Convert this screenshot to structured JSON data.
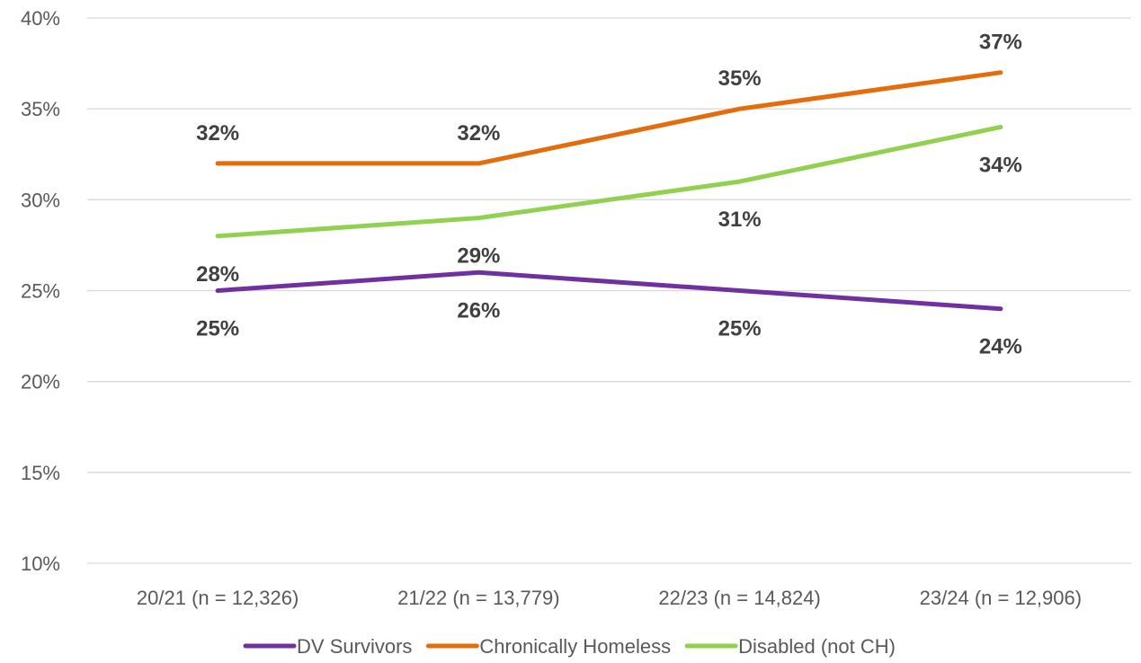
{
  "chart_data": {
    "type": "line",
    "title": "",
    "xlabel": "",
    "ylabel": "",
    "categories": [
      "20/21 (n = 12,326)",
      "21/22 (n = 13,779)",
      "22/23 (n = 14,824)",
      "23/24 (n = 12,906)"
    ],
    "ylim": [
      10,
      40
    ],
    "yticks": [
      10,
      15,
      20,
      25,
      30,
      35,
      40
    ],
    "ytick_labels": [
      "10%",
      "15%",
      "20%",
      "25%",
      "30%",
      "35%",
      "40%"
    ],
    "grid": "horizontal",
    "legend_position": "bottom",
    "series": [
      {
        "name": "DV Survivors",
        "color": "#7030A0",
        "values": [
          25,
          26,
          25,
          24
        ],
        "labels": [
          "25%",
          "26%",
          "25%",
          "24%"
        ],
        "label_position": "below"
      },
      {
        "name": "Chronically Homeless",
        "color": "#E46C0A",
        "values": [
          32,
          32,
          35,
          37
        ],
        "labels": [
          "32%",
          "32%",
          "35%",
          "37%"
        ],
        "label_position": "above"
      },
      {
        "name": "Disabled (not CH)",
        "color": "#92D050",
        "values": [
          28,
          29,
          31,
          34
        ],
        "labels": [
          "28%",
          "29%",
          "31%",
          "34%"
        ],
        "label_position": "below"
      }
    ]
  }
}
